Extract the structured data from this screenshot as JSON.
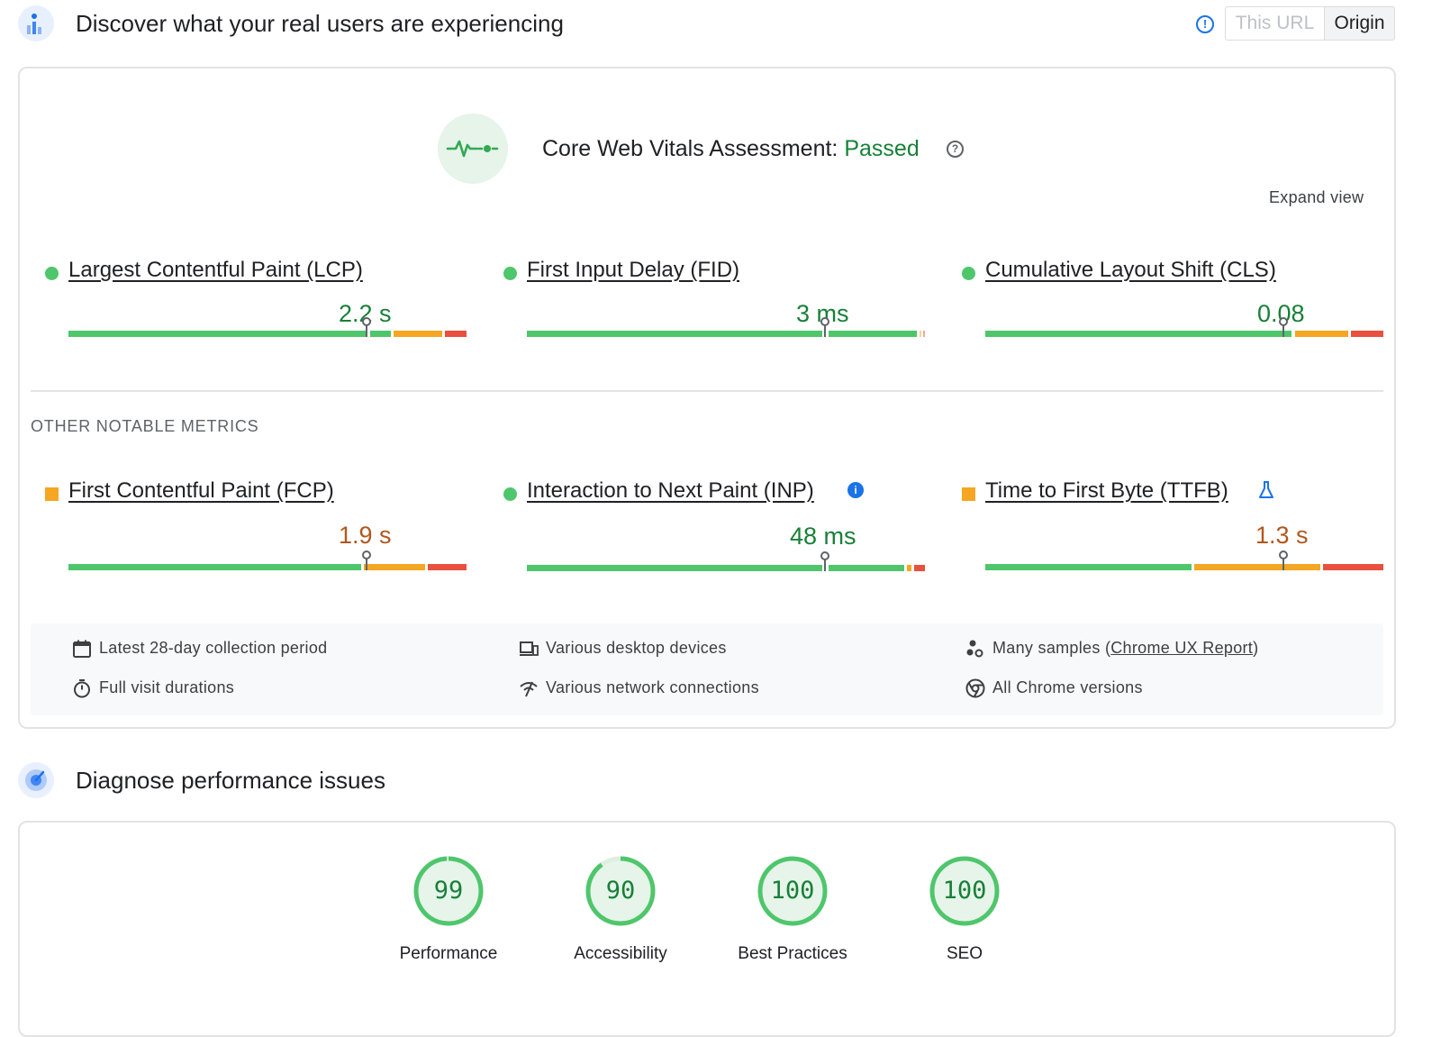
{
  "field": {
    "title": "Discover what your real users are experiencing",
    "toggle": {
      "this_url": "This URL",
      "origin": "Origin"
    },
    "assessment_label": "Core Web Vitals Assessment:",
    "assessment_status": "Passed",
    "expand_view": "Expand view",
    "core_metrics": [
      {
        "name": "Largest Contentful Paint (LCP)",
        "value": "2.2 s",
        "rating": "good"
      },
      {
        "name": "First Input Delay (FID)",
        "value": "3 ms",
        "rating": "good"
      },
      {
        "name": "Cumulative Layout Shift (CLS)",
        "value": "0.08",
        "rating": "good"
      }
    ],
    "other_heading": "OTHER NOTABLE METRICS",
    "other_metrics": [
      {
        "name": "First Contentful Paint (FCP)",
        "value": "1.9 s",
        "rating": "needs-improvement"
      },
      {
        "name": "Interaction to Next Paint (INP)",
        "value": "48 ms",
        "rating": "good"
      },
      {
        "name": "Time to First Byte (TTFB)",
        "value": "1.3 s",
        "rating": "needs-improvement"
      }
    ],
    "info": {
      "collection_period": "Latest 28-day collection period",
      "devices": "Various desktop devices",
      "samples_prefix": "Many samples (",
      "samples_link": "Chrome UX Report",
      "samples_suffix": ")",
      "durations": "Full visit durations",
      "network": "Various network connections",
      "chrome": "All Chrome versions"
    }
  },
  "lab": {
    "title": "Diagnose performance issues",
    "scores": [
      {
        "value": "99",
        "label": "Performance"
      },
      {
        "value": "90",
        "label": "Accessibility"
      },
      {
        "value": "100",
        "label": "Best Practices"
      },
      {
        "value": "100",
        "label": "SEO"
      }
    ]
  },
  "colors": {
    "good": "#4fc66b",
    "needs_improvement": "#f5a623",
    "poor": "#e8503f",
    "passed_text": "#188038",
    "accent": "#1a73e8"
  },
  "icons": {
    "field_section": "users-chart-icon",
    "lab_section": "radar-icon",
    "assessment": "heartbeat-icon"
  }
}
